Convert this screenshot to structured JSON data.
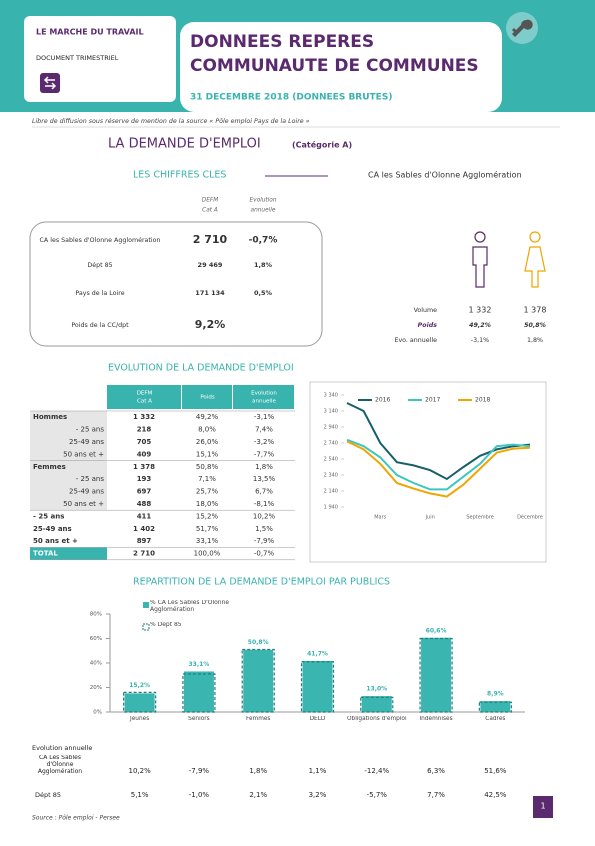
{
  "header": {
    "series_name": "LE MARCHE DU TRAVAIL",
    "doc_type": "DOCUMENT TRIMESTRIEL",
    "title_line1": "DONNEES REPERES",
    "title_line2": "COMMUNAUTE DE COMMUNES",
    "date": "31 DECEMBRE 2018 (DONNEES BRUTES)"
  },
  "note": "Libre de diffusion sous réserve de mention de la source « Pôle emploi Pays de la Loire »",
  "page_title": "LA DEMANDE D'EMPLOI",
  "page_subtitle": "(Catégorie A)",
  "key_figures": {
    "title": "LES CHIFFRES CLES",
    "headers": [
      [
        "DEFM",
        "Cat A"
      ],
      [
        "Evolution",
        "annuelle"
      ]
    ],
    "rows": [
      [
        "CA les Sables d'Olonne Agglomération",
        "2 710",
        "-0,7%"
      ],
      [
        "Dépt 85",
        "29 469",
        "1,8%"
      ],
      [
        "Pays de la Loire",
        "171 134",
        "0,5%"
      ],
      [
        "Poids de la CC/dpt",
        "9,2%"
      ]
    ]
  },
  "gender": {
    "title": "CA les Sables d'Olonne Agglomération",
    "labels": [
      "Volume",
      "Poids",
      "Evo. annuelle"
    ],
    "men": [
      "1 332",
      "49,2%",
      "-3,1%"
    ],
    "women": [
      "1 378",
      "50,8%",
      "1,8%"
    ]
  },
  "evolution_title": "EVOLUTION DE LA DEMANDE D'EMPLOI",
  "evolution_table": {
    "headers": [
      [
        "DEFM",
        "Cat A"
      ],
      [
        "Poids"
      ],
      [
        "Evolution",
        "annuelle"
      ]
    ],
    "rows": [
      [
        "Hommes",
        "1 332",
        "49,2%",
        "-3,1%"
      ],
      [
        "- 25 ans",
        "218",
        "8,0%",
        "7,4%"
      ],
      [
        "25-49 ans",
        "705",
        "26,0%",
        "-3,2%"
      ],
      [
        "50 ans et +",
        "409",
        "15,1%",
        "-7,7%"
      ],
      [
        "Femmes",
        "1 378",
        "50,8%",
        "1,8%"
      ],
      [
        "- 25 ans",
        "193",
        "7,1%",
        "13,5%"
      ],
      [
        "25-49 ans",
        "697",
        "25,7%",
        "6,7%"
      ],
      [
        "50 ans et +",
        "488",
        "18,0%",
        "-8,1%"
      ],
      [
        "- 25 ans",
        "411",
        "15,2%",
        "10,2%"
      ],
      [
        "25-49 ans",
        "1 402",
        "51,7%",
        "1,5%"
      ],
      [
        "50 ans et +",
        "897",
        "33,1%",
        "-7,9%"
      ],
      [
        "TOTAL",
        "2 710",
        "100,0%",
        "-0,7%"
      ]
    ]
  },
  "chart_data": [
    {
      "type": "line",
      "categories": [
        null,
        null,
        "Mars",
        null,
        null,
        "Juin",
        null,
        null,
        "Septembre",
        null,
        null,
        "Décembre"
      ],
      "ylim": [
        1940,
        3340
      ],
      "yticks": [
        {
          "value": 1940,
          "label": "1 940"
        },
        {
          "value": 2140,
          "label": "2 140"
        },
        {
          "value": 2340,
          "label": "2 340"
        },
        {
          "value": 2540,
          "label": "2 540"
        },
        {
          "value": 2740,
          "label": "2 740"
        },
        {
          "value": 2940,
          "label": "2 940"
        },
        {
          "value": 3140,
          "label": "3 140"
        },
        {
          "value": 3340,
          "label": "3 340"
        }
      ],
      "series": [
        {
          "name": "2016",
          "color": "#17606a",
          "values": [
            3240,
            3140,
            2740,
            2500,
            2460,
            2400,
            2290,
            2440,
            2580,
            2660,
            2700,
            2720
          ]
        },
        {
          "name": "2017",
          "color": "#3cc6c0",
          "values": [
            2780,
            2700,
            2560,
            2340,
            2240,
            2160,
            2160,
            2320,
            2480,
            2700,
            2720,
            2700
          ]
        },
        {
          "name": "2018",
          "color": "#f0a500",
          "values": [
            2760,
            2660,
            2480,
            2240,
            2170,
            2110,
            2070,
            2220,
            2420,
            2620,
            2670,
            2680
          ]
        }
      ]
    },
    {
      "type": "bar",
      "title": "REPARTITION DE LA DEMANDE D'EMPLOI PAR PUBLICS",
      "categories": [
        "Jeunes",
        "Séniors",
        "Femmes",
        "DELD",
        "Obligations d'emploi",
        "Indemnisés",
        "Cadres"
      ],
      "ylim": [
        0,
        80
      ],
      "yticks": [
        {
          "value": 0,
          "label": "0%"
        },
        {
          "value": 20,
          "label": "20%"
        },
        {
          "value": 40,
          "label": "40%"
        },
        {
          "value": 60,
          "label": "60%"
        },
        {
          "value": 80,
          "label": "80%"
        }
      ],
      "series": [
        {
          "name": "% CA Les Sables D'Olonne Agglomération",
          "color": "#3bb5b0",
          "values": [
            15.2,
            33.1,
            50.8,
            41.7,
            13.0,
            60.6,
            8.9
          ],
          "value_labels": [
            "15,2%",
            "33,1%",
            "50,8%",
            "41,7%",
            "13,0%",
            "60,6%",
            "8,9%"
          ]
        },
        {
          "name": "% Dépt 85",
          "color": "#1f7f7b",
          "values": [
            16,
            31,
            51,
            41,
            12,
            60,
            8
          ]
        }
      ]
    }
  ],
  "annual_evolution": {
    "title": "Evolution annuelle",
    "rows": [
      [
        "CA Les Sables d'Olonne Agglomération",
        "10,2%",
        "-7,9%",
        "1,8%",
        "1,1%",
        "-12,4%",
        "6,3%",
        "51,6%"
      ],
      [
        "Dépt 85",
        "5,1%",
        "-1,0%",
        "2,1%",
        "3,2%",
        "-5,7%",
        "7,7%",
        "42,5%"
      ]
    ]
  },
  "footer": {
    "source": "Source : Pôle emploi - Persee",
    "page": "1"
  }
}
